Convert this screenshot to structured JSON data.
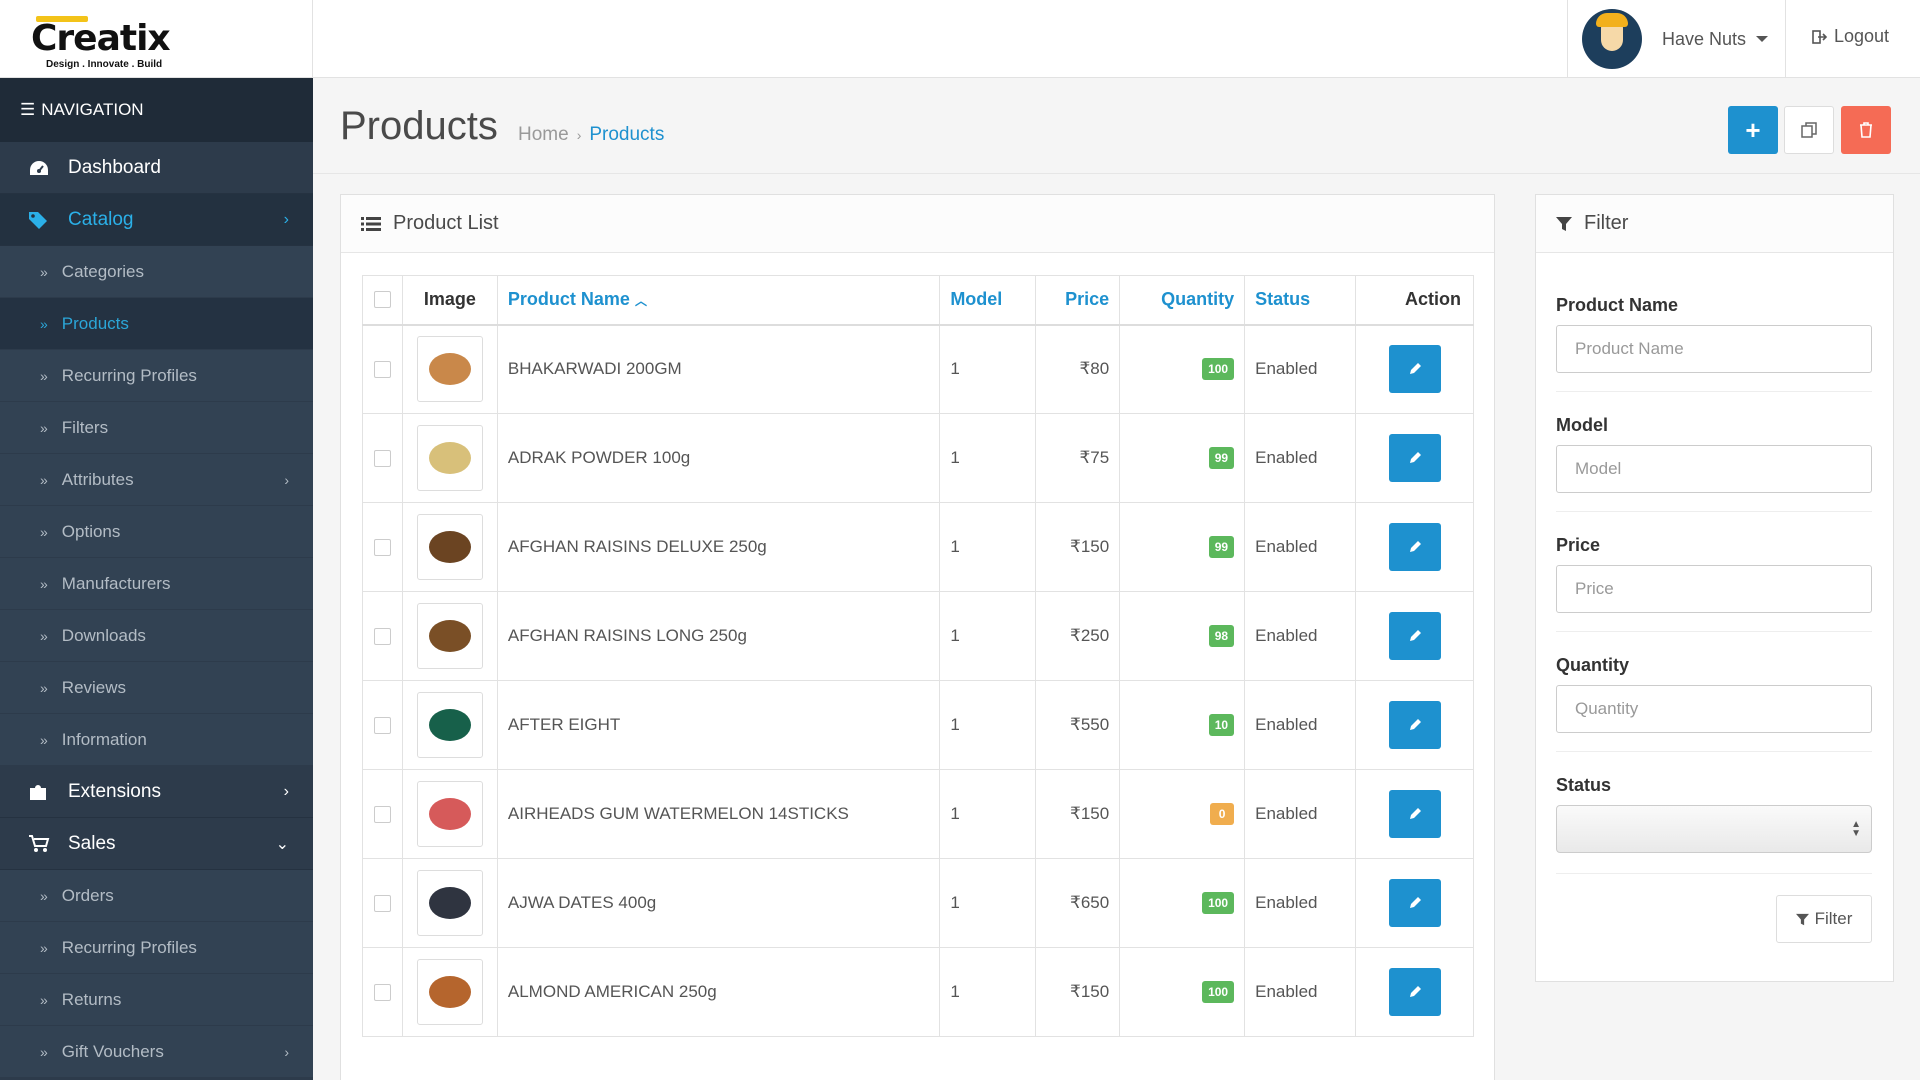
{
  "header": {
    "logo": "Creatix",
    "tagline": "Design . Innovate . Build",
    "user_name": "Have Nuts",
    "logout_label": "Logout"
  },
  "sidebar": {
    "nav_title": "NAVIGATION",
    "dashboard": "Dashboard",
    "catalog": "Catalog",
    "catalog_items": [
      "Categories",
      "Products",
      "Recurring Profiles",
      "Filters",
      "Attributes",
      "Options",
      "Manufacturers",
      "Downloads",
      "Reviews",
      "Information"
    ],
    "extensions": "Extensions",
    "sales": "Sales",
    "sales_items": [
      "Orders",
      "Recurring Profiles",
      "Returns",
      "Gift Vouchers"
    ]
  },
  "page": {
    "title": "Products",
    "breadcrumb_home": "Home",
    "breadcrumb_current": "Products"
  },
  "list": {
    "title": "Product List",
    "columns": {
      "image": "Image",
      "name": "Product Name",
      "model": "Model",
      "price": "Price",
      "quantity": "Quantity",
      "status": "Status",
      "action": "Action"
    },
    "rows": [
      {
        "name": "BHAKARWADI 200GM",
        "model": "1",
        "price": "₹80",
        "quantity": "100",
        "status": "Enabled"
      },
      {
        "name": "ADRAK POWDER 100g",
        "model": "1",
        "price": "₹75",
        "quantity": "99",
        "status": "Enabled"
      },
      {
        "name": "AFGHAN RAISINS DELUXE 250g",
        "model": "1",
        "price": "₹150",
        "quantity": "99",
        "status": "Enabled"
      },
      {
        "name": "AFGHAN RAISINS LONG 250g",
        "model": "1",
        "price": "₹250",
        "quantity": "98",
        "status": "Enabled"
      },
      {
        "name": "AFTER EIGHT",
        "model": "1",
        "price": "₹550",
        "quantity": "10",
        "status": "Enabled"
      },
      {
        "name": "AIRHEADS GUM WATERMELON 14STICKS",
        "model": "1",
        "price": "₹150",
        "quantity": "0",
        "status": "Enabled"
      },
      {
        "name": "AJWA DATES 400g",
        "model": "1",
        "price": "₹650",
        "quantity": "100",
        "status": "Enabled"
      },
      {
        "name": "ALMOND AMERICAN 250g",
        "model": "1",
        "price": "₹150",
        "quantity": "100",
        "status": "Enabled"
      }
    ]
  },
  "filter": {
    "title": "Filter",
    "name_label": "Product Name",
    "name_placeholder": "Product Name",
    "model_label": "Model",
    "model_placeholder": "Model",
    "price_label": "Price",
    "price_placeholder": "Price",
    "quantity_label": "Quantity",
    "quantity_placeholder": "Quantity",
    "status_label": "Status",
    "status_value": "",
    "button_label": "Filter"
  },
  "colors": {
    "accent": "#1e91cf",
    "danger": "#f56b55",
    "badge_ok": "#5cb85c",
    "badge_warn": "#f0ad4e",
    "sidebar": "#2d3b4b"
  }
}
